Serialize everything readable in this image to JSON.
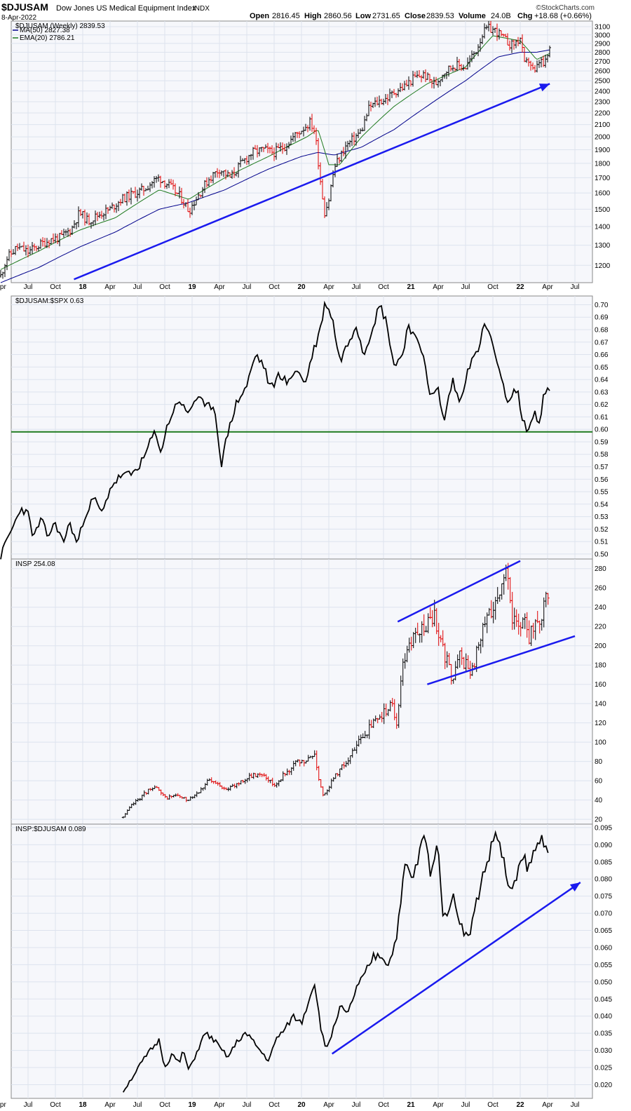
{
  "header": {
    "symbol": "$DJUSAM",
    "name": "Dow Jones US Medical Equipment Index",
    "exchange": "INDX",
    "date": "8-Apr-2022",
    "open_label": "Open",
    "open": "2816.45",
    "high_label": "High",
    "high": "2860.56",
    "low_label": "Low",
    "low": "2731.65",
    "close_label": "Close",
    "close": "2839.53",
    "volume_label": "Volume",
    "volume": "24.0B",
    "chg_label": "Chg",
    "chg": "+18.68 (+0.66%)",
    "logo": "©StockCharts.com"
  },
  "colors": {
    "up_bar": "#000000",
    "down_bar": "#e00000",
    "ma50": "#00008b",
    "ema20": "#1f7a1f",
    "trendline": "#1a1aee",
    "support_line": "#1f7a1f",
    "grid": "#dde3ee",
    "panel_bg": "#f6f7fb"
  },
  "x_axis": {
    "labels": [
      "Apr",
      "Jul",
      "Oct",
      "18",
      "Apr",
      "Jul",
      "Oct",
      "19",
      "Apr",
      "Jul",
      "Oct",
      "20",
      "Apr",
      "Jul",
      "Oct",
      "21",
      "Apr",
      "Jul",
      "Oct",
      "22",
      "Apr",
      "Jul"
    ],
    "bold_labels": [
      "18",
      "19",
      "20",
      "21",
      "22"
    ]
  },
  "chart_data": [
    {
      "type": "candlestick",
      "title": "$DJUSAM (Weekly) 2839.53",
      "legend": [
        {
          "name": "MA(50) 2827.38",
          "color": "#00008b"
        },
        {
          "name": "EMA(20) 2786.21",
          "color": "#1f7a1f"
        }
      ],
      "y_scale": "log",
      "ylim": [
        1120,
        3170
      ],
      "yticks": [
        "1200",
        "1300",
        "1400",
        "1500",
        "1600",
        "1700",
        "1800",
        "1900",
        "2000",
        "2100",
        "2200",
        "2300",
        "2400",
        "2500",
        "2600",
        "2700",
        "2800",
        "2900",
        "3000",
        "3100"
      ],
      "x_range": [
        "2017-04",
        "2022-07"
      ],
      "close_keypoints": [
        [
          2017.25,
          1150
        ],
        [
          2017.3,
          1230
        ],
        [
          2017.4,
          1290
        ],
        [
          2017.5,
          1265
        ],
        [
          2017.6,
          1300
        ],
        [
          2017.7,
          1330
        ],
        [
          2017.8,
          1340
        ],
        [
          2017.9,
          1390
        ],
        [
          2017.97,
          1480
        ],
        [
          2018.05,
          1430
        ],
        [
          2018.15,
          1470
        ],
        [
          2018.25,
          1500
        ],
        [
          2018.35,
          1560
        ],
        [
          2018.45,
          1590
        ],
        [
          2018.55,
          1620
        ],
        [
          2018.65,
          1680
        ],
        [
          2018.7,
          1700
        ],
        [
          2018.8,
          1640
        ],
        [
          2018.9,
          1570
        ],
        [
          2018.97,
          1490
        ],
        [
          2019.05,
          1580
        ],
        [
          2019.15,
          1690
        ],
        [
          2019.25,
          1760
        ],
        [
          2019.35,
          1700
        ],
        [
          2019.45,
          1800
        ],
        [
          2019.55,
          1880
        ],
        [
          2019.65,
          1900
        ],
        [
          2019.75,
          1880
        ],
        [
          2019.85,
          1930
        ],
        [
          2019.95,
          2020
        ],
        [
          2020.08,
          2120
        ],
        [
          2020.12,
          2050
        ],
        [
          2020.17,
          1700
        ],
        [
          2020.21,
          1480
        ],
        [
          2020.25,
          1560
        ],
        [
          2020.3,
          1770
        ],
        [
          2020.4,
          1920
        ],
        [
          2020.48,
          1990
        ],
        [
          2020.55,
          2050
        ],
        [
          2020.62,
          2250
        ],
        [
          2020.7,
          2300
        ],
        [
          2020.78,
          2330
        ],
        [
          2020.86,
          2400
        ],
        [
          2020.95,
          2450
        ],
        [
          2021.03,
          2530
        ],
        [
          2021.12,
          2560
        ],
        [
          2021.22,
          2460
        ],
        [
          2021.3,
          2590
        ],
        [
          2021.4,
          2660
        ],
        [
          2021.5,
          2640
        ],
        [
          2021.6,
          2830
        ],
        [
          2021.65,
          3000
        ],
        [
          2021.7,
          3080
        ],
        [
          2021.78,
          3050
        ],
        [
          2021.85,
          2950
        ],
        [
          2021.92,
          2880
        ],
        [
          2021.97,
          2920
        ],
        [
          2022.0,
          2960
        ],
        [
          2022.04,
          2650
        ],
        [
          2022.08,
          2720
        ],
        [
          2022.13,
          2560
        ],
        [
          2022.18,
          2720
        ],
        [
          2022.22,
          2640
        ],
        [
          2022.27,
          2840
        ]
      ],
      "ma50_keypoints": [
        [
          2017.25,
          1120
        ],
        [
          2017.6,
          1190
        ],
        [
          2017.97,
          1290
        ],
        [
          2018.3,
          1370
        ],
        [
          2018.7,
          1500
        ],
        [
          2018.97,
          1540
        ],
        [
          2019.3,
          1620
        ],
        [
          2019.7,
          1760
        ],
        [
          2020.0,
          1850
        ],
        [
          2020.15,
          1880
        ],
        [
          2020.3,
          1860
        ],
        [
          2020.55,
          1920
        ],
        [
          2020.85,
          2060
        ],
        [
          2021.15,
          2260
        ],
        [
          2021.5,
          2500
        ],
        [
          2021.8,
          2750
        ],
        [
          2022.0,
          2800
        ],
        [
          2022.15,
          2800
        ],
        [
          2022.27,
          2827
        ]
      ],
      "ema20_keypoints": [
        [
          2017.25,
          1180
        ],
        [
          2017.6,
          1270
        ],
        [
          2017.97,
          1380
        ],
        [
          2018.3,
          1450
        ],
        [
          2018.7,
          1620
        ],
        [
          2018.97,
          1560
        ],
        [
          2019.3,
          1700
        ],
        [
          2019.7,
          1850
        ],
        [
          2020.05,
          2000
        ],
        [
          2020.15,
          2060
        ],
        [
          2020.25,
          1790
        ],
        [
          2020.35,
          1790
        ],
        [
          2020.55,
          2000
        ],
        [
          2020.85,
          2260
        ],
        [
          2021.15,
          2470
        ],
        [
          2021.5,
          2640
        ],
        [
          2021.75,
          2990
        ],
        [
          2022.0,
          2930
        ],
        [
          2022.15,
          2720
        ],
        [
          2022.27,
          2786
        ]
      ],
      "trendline": [
        [
          2017.92,
          1135
        ],
        [
          2022.27,
          2470
        ]
      ]
    },
    {
      "type": "line",
      "title": "$DJUSAM:$SPX 0.63",
      "ylim": [
        0.496,
        0.707
      ],
      "yticks": [
        "0.50",
        "0.51",
        "0.52",
        "0.53",
        "0.54",
        "0.55",
        "0.56",
        "0.57",
        "0.58",
        "0.59",
        "0.60",
        "0.61",
        "0.62",
        "0.63",
        "0.64",
        "0.65",
        "0.66",
        "0.67",
        "0.68",
        "0.69",
        "0.70"
      ],
      "x_range": [
        "2017-04",
        "2022-07"
      ],
      "keypoints": [
        [
          2017.25,
          0.498
        ],
        [
          2017.3,
          0.51
        ],
        [
          2017.38,
          0.525
        ],
        [
          2017.43,
          0.537
        ],
        [
          2017.5,
          0.532
        ],
        [
          2017.55,
          0.513
        ],
        [
          2017.62,
          0.528
        ],
        [
          2017.68,
          0.514
        ],
        [
          2017.75,
          0.525
        ],
        [
          2017.82,
          0.509
        ],
        [
          2017.88,
          0.525
        ],
        [
          2017.95,
          0.508
        ],
        [
          2018.02,
          0.531
        ],
        [
          2018.1,
          0.545
        ],
        [
          2018.18,
          0.532
        ],
        [
          2018.25,
          0.553
        ],
        [
          2018.35,
          0.563
        ],
        [
          2018.45,
          0.564
        ],
        [
          2018.55,
          0.575
        ],
        [
          2018.65,
          0.597
        ],
        [
          2018.72,
          0.583
        ],
        [
          2018.78,
          0.605
        ],
        [
          2018.88,
          0.625
        ],
        [
          2018.95,
          0.612
        ],
        [
          2019.05,
          0.627
        ],
        [
          2019.12,
          0.617
        ],
        [
          2019.2,
          0.62
        ],
        [
          2019.27,
          0.572
        ],
        [
          2019.32,
          0.595
        ],
        [
          2019.4,
          0.62
        ],
        [
          2019.5,
          0.635
        ],
        [
          2019.58,
          0.66
        ],
        [
          2019.65,
          0.652
        ],
        [
          2019.72,
          0.632
        ],
        [
          2019.8,
          0.645
        ],
        [
          2019.88,
          0.636
        ],
        [
          2019.95,
          0.65
        ],
        [
          2020.03,
          0.636
        ],
        [
          2020.1,
          0.66
        ],
        [
          2020.17,
          0.68
        ],
        [
          2020.22,
          0.703
        ],
        [
          2020.28,
          0.69
        ],
        [
          2020.35,
          0.655
        ],
        [
          2020.42,
          0.668
        ],
        [
          2020.5,
          0.685
        ],
        [
          2020.57,
          0.66
        ],
        [
          2020.65,
          0.683
        ],
        [
          2020.72,
          0.7
        ],
        [
          2020.78,
          0.685
        ],
        [
          2020.85,
          0.65
        ],
        [
          2020.92,
          0.66
        ],
        [
          2020.98,
          0.685
        ],
        [
          2021.05,
          0.67
        ],
        [
          2021.12,
          0.66
        ],
        [
          2021.18,
          0.625
        ],
        [
          2021.25,
          0.632
        ],
        [
          2021.3,
          0.605
        ],
        [
          2021.38,
          0.64
        ],
        [
          2021.45,
          0.62
        ],
        [
          2021.52,
          0.65
        ],
        [
          2021.6,
          0.66
        ],
        [
          2021.68,
          0.685
        ],
        [
          2021.75,
          0.668
        ],
        [
          2021.82,
          0.64
        ],
        [
          2021.9,
          0.62
        ],
        [
          2021.97,
          0.635
        ],
        [
          2022.02,
          0.605
        ],
        [
          2022.08,
          0.6
        ],
        [
          2022.13,
          0.615
        ],
        [
          2022.18,
          0.603
        ],
        [
          2022.22,
          0.63
        ],
        [
          2022.27,
          0.631
        ]
      ],
      "support_line": 0.598
    },
    {
      "type": "candlestick",
      "title": "INSP 254.08",
      "ylim": [
        15,
        290
      ],
      "yticks": [
        "20",
        "40",
        "60",
        "80",
        "100",
        "120",
        "140",
        "160",
        "180",
        "200",
        "220",
        "240",
        "260",
        "280"
      ],
      "x_range": [
        "2018-05",
        "2022-07"
      ],
      "close_keypoints": [
        [
          2018.37,
          22
        ],
        [
          2018.45,
          35
        ],
        [
          2018.55,
          45
        ],
        [
          2018.65,
          55
        ],
        [
          2018.75,
          42
        ],
        [
          2018.85,
          45
        ],
        [
          2018.95,
          40
        ],
        [
          2019.05,
          48
        ],
        [
          2019.15,
          60
        ],
        [
          2019.25,
          55
        ],
        [
          2019.35,
          52
        ],
        [
          2019.45,
          60
        ],
        [
          2019.55,
          65
        ],
        [
          2019.65,
          68
        ],
        [
          2019.75,
          55
        ],
        [
          2019.85,
          68
        ],
        [
          2019.95,
          78
        ],
        [
          2020.05,
          80
        ],
        [
          2020.12,
          88
        ],
        [
          2020.17,
          55
        ],
        [
          2020.2,
          45
        ],
        [
          2020.28,
          60
        ],
        [
          2020.35,
          72
        ],
        [
          2020.45,
          85
        ],
        [
          2020.55,
          105
        ],
        [
          2020.65,
          118
        ],
        [
          2020.75,
          130
        ],
        [
          2020.82,
          140
        ],
        [
          2020.87,
          120
        ],
        [
          2020.92,
          175
        ],
        [
          2020.97,
          200
        ],
        [
          2021.05,
          210
        ],
        [
          2021.15,
          225
        ],
        [
          2021.22,
          230
        ],
        [
          2021.3,
          195
        ],
        [
          2021.38,
          165
        ],
        [
          2021.45,
          190
        ],
        [
          2021.55,
          170
        ],
        [
          2021.62,
          200
        ],
        [
          2021.7,
          230
        ],
        [
          2021.78,
          250
        ],
        [
          2021.84,
          270
        ],
        [
          2021.88,
          275
        ],
        [
          2021.92,
          225
        ],
        [
          2021.97,
          220
        ],
        [
          2022.03,
          230
        ],
        [
          2022.08,
          210
        ],
        [
          2022.13,
          220
        ],
        [
          2022.18,
          215
        ],
        [
          2022.22,
          255
        ],
        [
          2022.27,
          254
        ]
      ],
      "channel_upper": [
        [
          2020.88,
          225
        ],
        [
          2022.0,
          288
        ]
      ],
      "channel_lower": [
        [
          2021.15,
          160
        ],
        [
          2022.5,
          210
        ]
      ]
    },
    {
      "type": "line",
      "title": "INSP:$DJUSAM 0.089",
      "ylim": [
        0.016,
        0.096
      ],
      "yticks": [
        "0.020",
        "0.025",
        "0.030",
        "0.035",
        "0.040",
        "0.045",
        "0.050",
        "0.055",
        "0.060",
        "0.065",
        "0.070",
        "0.075",
        "0.080",
        "0.085",
        "0.090",
        "0.095"
      ],
      "x_range": [
        "2018-05",
        "2022-07"
      ],
      "keypoints": [
        [
          2018.37,
          0.018
        ],
        [
          2018.45,
          0.022
        ],
        [
          2018.55,
          0.027
        ],
        [
          2018.62,
          0.03
        ],
        [
          2018.7,
          0.033
        ],
        [
          2018.75,
          0.025
        ],
        [
          2018.82,
          0.029
        ],
        [
          2018.88,
          0.026
        ],
        [
          2018.92,
          0.03
        ],
        [
          2018.97,
          0.024
        ],
        [
          2019.05,
          0.03
        ],
        [
          2019.12,
          0.035
        ],
        [
          2019.2,
          0.033
        ],
        [
          2019.27,
          0.03
        ],
        [
          2019.33,
          0.028
        ],
        [
          2019.4,
          0.032
        ],
        [
          2019.48,
          0.035
        ],
        [
          2019.55,
          0.033
        ],
        [
          2019.62,
          0.03
        ],
        [
          2019.7,
          0.027
        ],
        [
          2019.78,
          0.034
        ],
        [
          2019.85,
          0.036
        ],
        [
          2019.92,
          0.04
        ],
        [
          2020.0,
          0.038
        ],
        [
          2020.06,
          0.044
        ],
        [
          2020.12,
          0.05
        ],
        [
          2020.17,
          0.038
        ],
        [
          2020.22,
          0.03
        ],
        [
          2020.28,
          0.035
        ],
        [
          2020.35,
          0.043
        ],
        [
          2020.42,
          0.04
        ],
        [
          2020.5,
          0.048
        ],
        [
          2020.58,
          0.052
        ],
        [
          2020.65,
          0.057
        ],
        [
          2020.72,
          0.058
        ],
        [
          2020.8,
          0.055
        ],
        [
          2020.86,
          0.062
        ],
        [
          2020.9,
          0.07
        ],
        [
          2020.95,
          0.085
        ],
        [
          2021.0,
          0.08
        ],
        [
          2021.05,
          0.083
        ],
        [
          2021.12,
          0.093
        ],
        [
          2021.18,
          0.082
        ],
        [
          2021.25,
          0.09
        ],
        [
          2021.3,
          0.068
        ],
        [
          2021.38,
          0.075
        ],
        [
          2021.45,
          0.068
        ],
        [
          2021.52,
          0.062
        ],
        [
          2021.58,
          0.07
        ],
        [
          2021.65,
          0.08
        ],
        [
          2021.72,
          0.087
        ],
        [
          2021.78,
          0.094
        ],
        [
          2021.85,
          0.085
        ],
        [
          2021.9,
          0.075
        ],
        [
          2021.97,
          0.082
        ],
        [
          2022.03,
          0.086
        ],
        [
          2022.08,
          0.083
        ],
        [
          2022.13,
          0.088
        ],
        [
          2022.2,
          0.092
        ],
        [
          2022.27,
          0.089
        ]
      ],
      "trendline": [
        [
          2020.28,
          0.029
        ],
        [
          2022.55,
          0.079
        ]
      ]
    }
  ]
}
